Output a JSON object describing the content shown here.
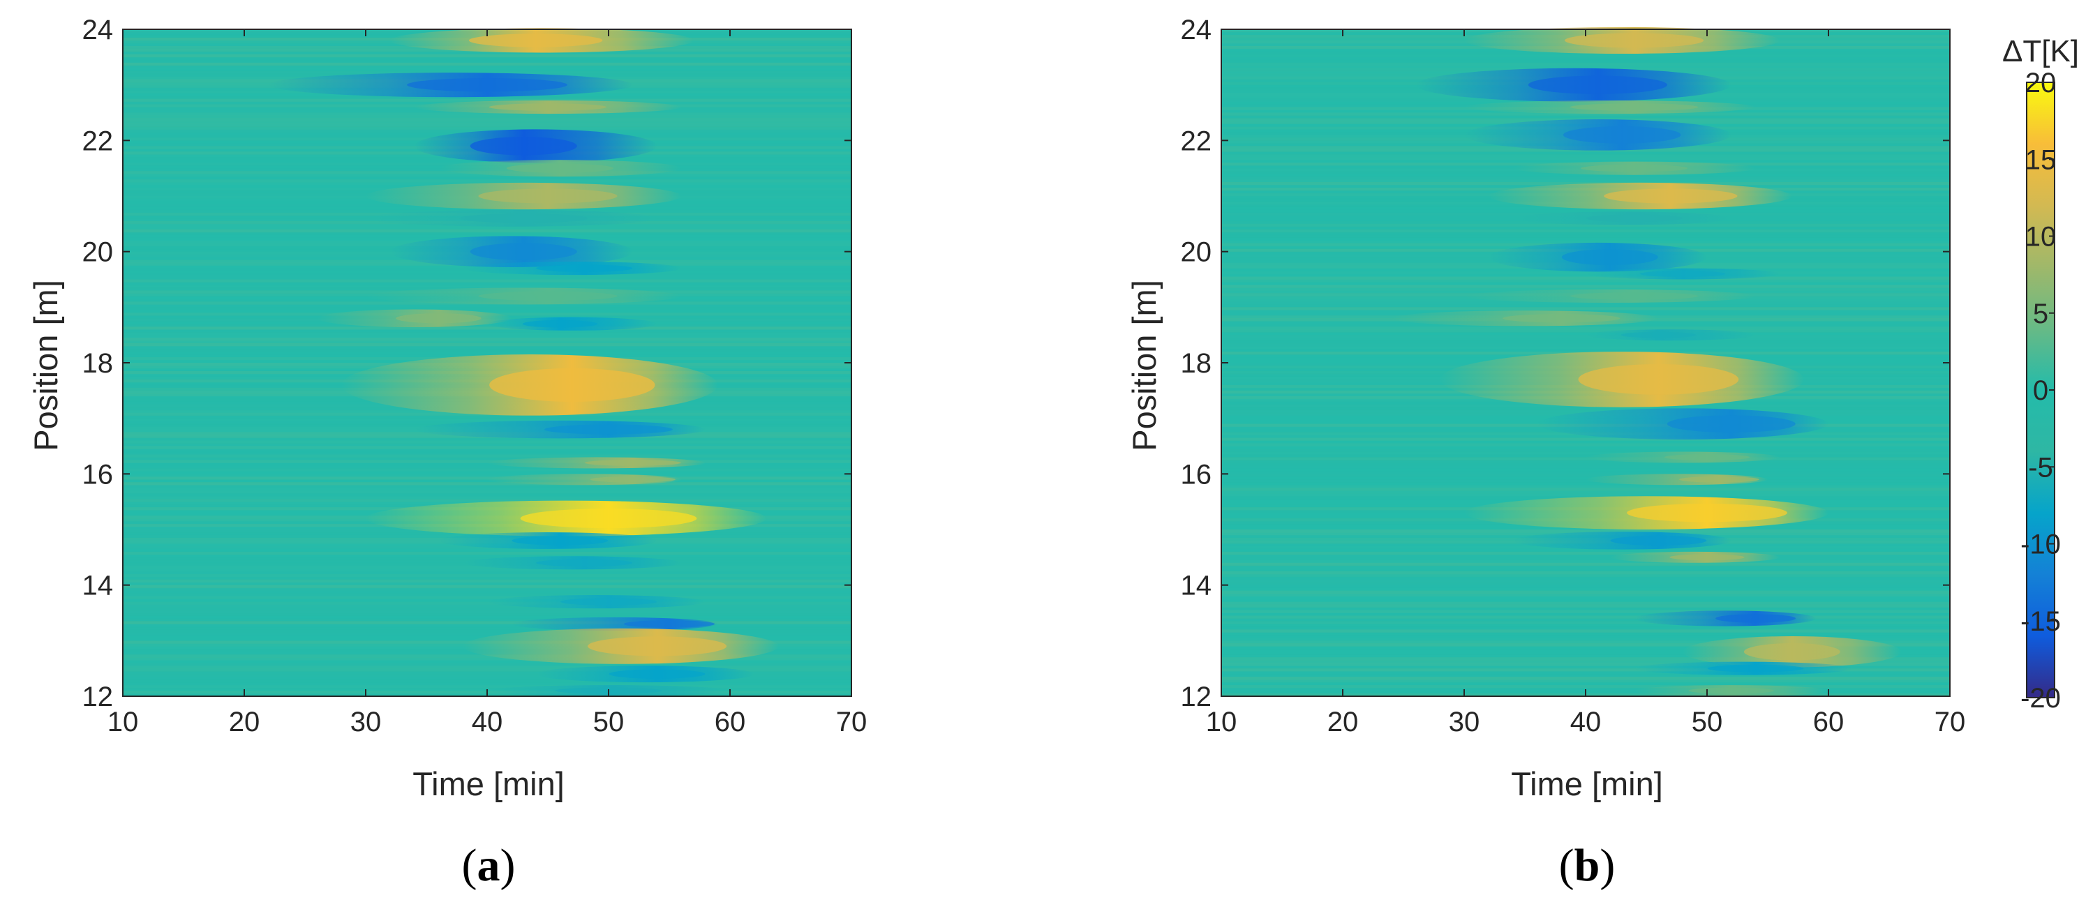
{
  "chart_data": [
    {
      "type": "heatmap",
      "panel_label": "(a)",
      "panel_letter": "a",
      "title": "",
      "xlabel": "Time [min]",
      "ylabel": "Position [m]",
      "xlim": [
        10,
        70
      ],
      "ylim": [
        12,
        24
      ],
      "xticks": [
        10,
        20,
        30,
        40,
        50,
        60,
        70
      ],
      "yticks": [
        12,
        14,
        16,
        18,
        20,
        22,
        24
      ],
      "zlim": [
        -20,
        20
      ],
      "background_value": 0,
      "features": [
        {
          "position": 23.8,
          "t_start": 32,
          "t_peak": 44,
          "t_end": 57,
          "value": 14,
          "height": 0.22
        },
        {
          "position": 23.0,
          "t_start": 22,
          "t_peak": 40,
          "t_end": 52,
          "value": -14,
          "height": 0.22
        },
        {
          "position": 22.6,
          "t_start": 34,
          "t_peak": 45,
          "t_end": 56,
          "value": 8,
          "height": 0.12
        },
        {
          "position": 21.9,
          "t_start": 34,
          "t_peak": 43,
          "t_end": 54,
          "value": -16,
          "height": 0.3
        },
        {
          "position": 21.5,
          "t_start": 36,
          "t_peak": 46,
          "t_end": 56,
          "value": 4,
          "height": 0.15
        },
        {
          "position": 21.0,
          "t_start": 30,
          "t_peak": 45,
          "t_end": 56,
          "value": 9,
          "height": 0.24
        },
        {
          "position": 20.6,
          "t_start": 30,
          "t_peak": 43,
          "t_end": 54,
          "value": -5,
          "height": 0.15
        },
        {
          "position": 20.0,
          "t_start": 32,
          "t_peak": 43,
          "t_end": 52,
          "value": -11,
          "height": 0.28
        },
        {
          "position": 19.7,
          "t_start": 38,
          "t_peak": 48,
          "t_end": 56,
          "value": -8,
          "height": 0.12
        },
        {
          "position": 19.2,
          "t_start": 30,
          "t_peak": 45,
          "t_end": 56,
          "value": 3,
          "height": 0.15
        },
        {
          "position": 18.8,
          "t_start": 26,
          "t_peak": 36,
          "t_end": 42,
          "value": 6,
          "height": 0.16
        },
        {
          "position": 18.7,
          "t_start": 40,
          "t_peak": 46,
          "t_end": 54,
          "value": -8,
          "height": 0.12
        },
        {
          "position": 17.6,
          "t_start": 28,
          "t_peak": 47,
          "t_end": 59,
          "value": 15,
          "height": 0.55
        },
        {
          "position": 16.8,
          "t_start": 34,
          "t_peak": 50,
          "t_end": 58,
          "value": -10,
          "height": 0.16
        },
        {
          "position": 16.2,
          "t_start": 40,
          "t_peak": 52,
          "t_end": 58,
          "value": 8,
          "height": 0.1
        },
        {
          "position": 15.9,
          "t_start": 40,
          "t_peak": 52,
          "t_end": 56,
          "value": 7,
          "height": 0.1
        },
        {
          "position": 15.2,
          "t_start": 30,
          "t_peak": 50,
          "t_end": 63,
          "value": 18,
          "height": 0.32
        },
        {
          "position": 14.8,
          "t_start": 36,
          "t_peak": 46,
          "t_end": 54,
          "value": -8,
          "height": 0.15
        },
        {
          "position": 14.4,
          "t_start": 38,
          "t_peak": 48,
          "t_end": 56,
          "value": -7,
          "height": 0.12
        },
        {
          "position": 13.7,
          "t_start": 40,
          "t_peak": 50,
          "t_end": 58,
          "value": -7,
          "height": 0.12
        },
        {
          "position": 13.3,
          "t_start": 42,
          "t_peak": 55,
          "t_end": 59,
          "value": -13,
          "height": 0.12
        },
        {
          "position": 12.9,
          "t_start": 38,
          "t_peak": 54,
          "t_end": 64,
          "value": 13,
          "height": 0.32
        },
        {
          "position": 12.4,
          "t_start": 44,
          "t_peak": 54,
          "t_end": 62,
          "value": -8,
          "height": 0.15
        },
        {
          "position": 12.1,
          "t_start": 40,
          "t_peak": 50,
          "t_end": 60,
          "value": -6,
          "height": 0.1
        }
      ]
    },
    {
      "type": "heatmap",
      "panel_label": "(b)",
      "panel_letter": "b",
      "title": "",
      "xlabel": "Time [min]",
      "ylabel": "Position [m]",
      "xlim": [
        10,
        70
      ],
      "ylim": [
        12,
        24
      ],
      "xticks": [
        10,
        20,
        30,
        40,
        50,
        60,
        70
      ],
      "yticks": [
        12,
        14,
        16,
        18,
        20,
        22,
        24
      ],
      "zlim": [
        -20,
        20
      ],
      "background_value": 0,
      "features": [
        {
          "position": 23.8,
          "t_start": 30,
          "t_peak": 44,
          "t_end": 56,
          "value": 12,
          "height": 0.24
        },
        {
          "position": 23.0,
          "t_start": 26,
          "t_peak": 41,
          "t_end": 52,
          "value": -15,
          "height": 0.3
        },
        {
          "position": 22.6,
          "t_start": 30,
          "t_peak": 44,
          "t_end": 54,
          "value": 5,
          "height": 0.12
        },
        {
          "position": 22.1,
          "t_start": 30,
          "t_peak": 43,
          "t_end": 52,
          "value": -12,
          "height": 0.28
        },
        {
          "position": 21.5,
          "t_start": 34,
          "t_peak": 44,
          "t_end": 54,
          "value": 4,
          "height": 0.12
        },
        {
          "position": 21.0,
          "t_start": 32,
          "t_peak": 47,
          "t_end": 57,
          "value": 13,
          "height": 0.24
        },
        {
          "position": 20.6,
          "t_start": 34,
          "t_peak": 44,
          "t_end": 52,
          "value": -5,
          "height": 0.12
        },
        {
          "position": 19.9,
          "t_start": 32,
          "t_peak": 42,
          "t_end": 50,
          "value": -10,
          "height": 0.26
        },
        {
          "position": 19.6,
          "t_start": 40,
          "t_peak": 48,
          "t_end": 56,
          "value": -7,
          "height": 0.1
        },
        {
          "position": 19.2,
          "t_start": 30,
          "t_peak": 44,
          "t_end": 54,
          "value": 3,
          "height": 0.12
        },
        {
          "position": 18.8,
          "t_start": 24,
          "t_peak": 38,
          "t_end": 46,
          "value": 5,
          "height": 0.14
        },
        {
          "position": 18.5,
          "t_start": 40,
          "t_peak": 46,
          "t_end": 54,
          "value": -6,
          "height": 0.1
        },
        {
          "position": 17.7,
          "t_start": 28,
          "t_peak": 46,
          "t_end": 58,
          "value": 14,
          "height": 0.5
        },
        {
          "position": 16.9,
          "t_start": 36,
          "t_peak": 52,
          "t_end": 60,
          "value": -11,
          "height": 0.28
        },
        {
          "position": 16.3,
          "t_start": 40,
          "t_peak": 50,
          "t_end": 56,
          "value": 4,
          "height": 0.1
        },
        {
          "position": 15.9,
          "t_start": 40,
          "t_peak": 51,
          "t_end": 55,
          "value": 8,
          "height": 0.1
        },
        {
          "position": 15.3,
          "t_start": 30,
          "t_peak": 50,
          "t_end": 60,
          "value": 17,
          "height": 0.3
        },
        {
          "position": 14.8,
          "t_start": 34,
          "t_peak": 46,
          "t_end": 52,
          "value": -9,
          "height": 0.16
        },
        {
          "position": 14.5,
          "t_start": 42,
          "t_peak": 50,
          "t_end": 56,
          "value": 8,
          "height": 0.1
        },
        {
          "position": 13.4,
          "t_start": 44,
          "t_peak": 54,
          "t_end": 59,
          "value": -14,
          "height": 0.14
        },
        {
          "position": 12.8,
          "t_start": 48,
          "t_peak": 57,
          "t_end": 66,
          "value": 10,
          "height": 0.28
        },
        {
          "position": 12.5,
          "t_start": 44,
          "t_peak": 54,
          "t_end": 62,
          "value": -8,
          "height": 0.12
        },
        {
          "position": 12.1,
          "t_start": 44,
          "t_peak": 52,
          "t_end": 60,
          "value": 4,
          "height": 0.1
        }
      ],
      "colorbar": {
        "title": "ΔT[K]",
        "ticks": [
          20,
          15,
          10,
          5,
          0,
          -5,
          -10,
          -15,
          -20
        ]
      }
    }
  ]
}
